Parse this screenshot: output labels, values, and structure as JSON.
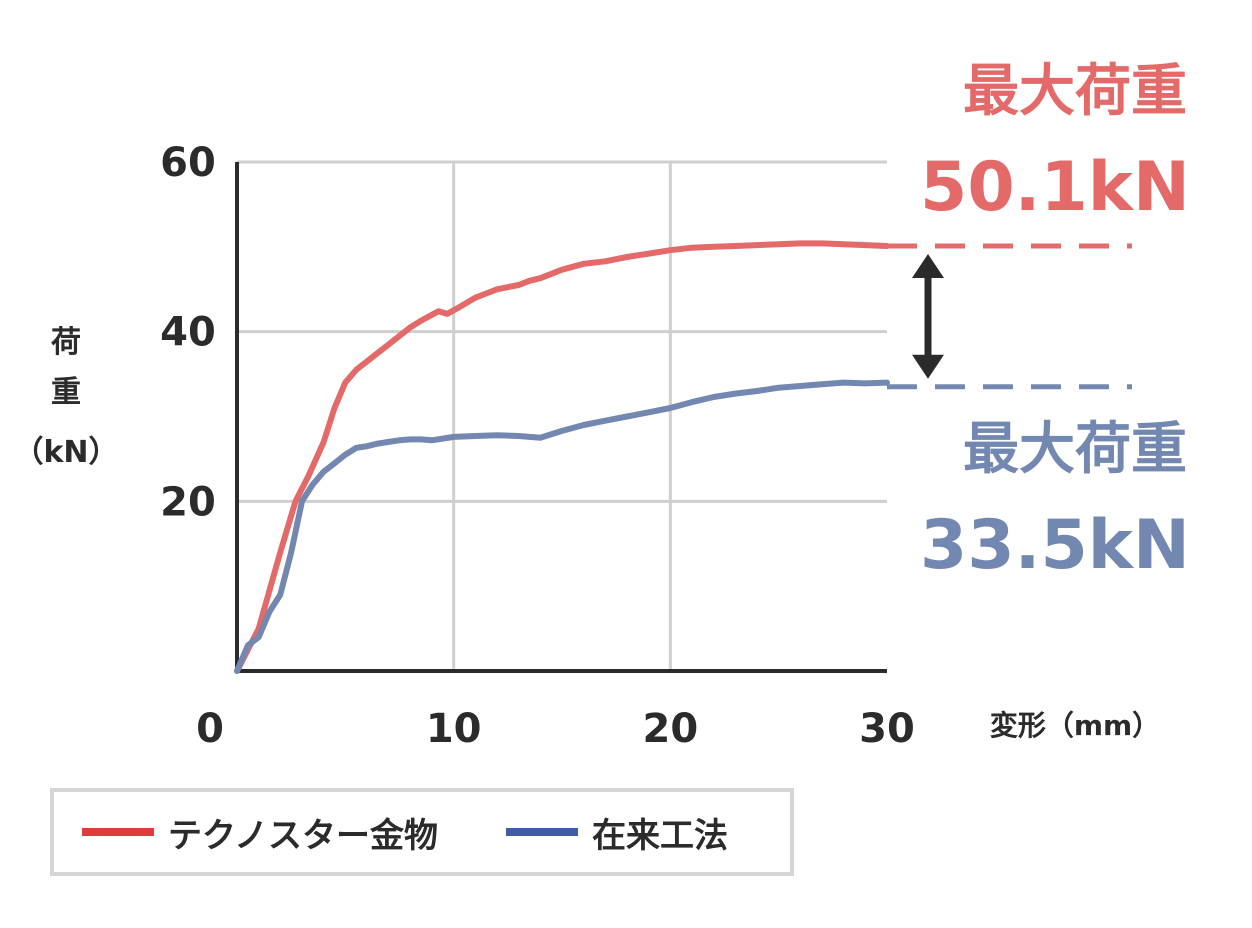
{
  "chart_data": {
    "type": "line",
    "xlabel": "変形（mm）",
    "ylabel": [
      "荷",
      "重",
      "（kN）"
    ],
    "xlim": [
      0,
      30
    ],
    "ylim": [
      0,
      60
    ],
    "x_ticks": [
      "0",
      "10",
      "20",
      "30"
    ],
    "y_ticks": [
      "20",
      "40",
      "60"
    ],
    "y_tick_values": [
      20,
      40,
      60
    ],
    "x_tick_values": [
      0,
      10,
      20,
      30
    ],
    "grid": true,
    "legend_position": "bottom-left",
    "colors": {
      "technostar": "#e46a6a",
      "conventional": "#7388b1",
      "axis": "#2b2b2b",
      "grid": "#cfcfcf",
      "arrow": "#2b2b2b"
    },
    "series": [
      {
        "name": "テクノスター金物",
        "color": "#e46a6a",
        "x": [
          0,
          1,
          2,
          2.7,
          3.3,
          4,
          4.5,
          5,
          5.5,
          6,
          6.5,
          7,
          7.5,
          8,
          8.5,
          9,
          9.3,
          9.7,
          10.2,
          11,
          11.5,
          12,
          13,
          13.5,
          14,
          15,
          16,
          17,
          18,
          19,
          20,
          21,
          22,
          23,
          24,
          25,
          26,
          27,
          28,
          29,
          30
        ],
        "values": [
          0,
          5,
          14,
          20,
          23,
          27,
          31,
          34,
          35.5,
          36.5,
          37.5,
          38.5,
          39.5,
          40.5,
          41.3,
          42,
          42.4,
          42.1,
          42.8,
          44,
          44.5,
          45,
          45.5,
          46,
          46.3,
          47.3,
          48,
          48.3,
          48.8,
          49.2,
          49.6,
          49.9,
          50,
          50.1,
          50.2,
          50.3,
          50.4,
          50.4,
          50.3,
          50.2,
          50.1
        ]
      },
      {
        "name": "在来工法",
        "color": "#7388b1",
        "x": [
          0,
          0.5,
          1,
          1.5,
          2,
          2.5,
          3,
          3.5,
          4,
          4.5,
          5,
          5.5,
          6,
          6.5,
          7,
          7.5,
          8,
          8.5,
          9,
          9.5,
          10,
          11,
          12,
          13,
          14,
          15,
          16,
          17,
          18,
          19,
          20,
          21,
          22,
          23,
          24,
          25,
          26,
          27,
          28,
          29,
          30
        ],
        "values": [
          0,
          3,
          4,
          7,
          9,
          14,
          20,
          22,
          23.5,
          24.5,
          25.5,
          26.3,
          26.5,
          26.8,
          27,
          27.2,
          27.3,
          27.3,
          27.2,
          27.4,
          27.6,
          27.7,
          27.8,
          27.7,
          27.5,
          28.3,
          29,
          29.5,
          30,
          30.5,
          31,
          31.7,
          32.3,
          32.7,
          33,
          33.4,
          33.6,
          33.8,
          34,
          33.9,
          34
        ]
      }
    ],
    "annotations": [
      {
        "title": "最大荷重",
        "value": "50.1kN",
        "y": 50.1,
        "color": "#e46a6a"
      },
      {
        "title": "最大荷重",
        "value": "33.5kN",
        "y": 33.5,
        "color": "#7388b1"
      }
    ]
  },
  "legend": {
    "items": [
      {
        "label": "テクノスター金物",
        "color": "#e03a3a"
      },
      {
        "label": "在来工法",
        "color": "#3f5da6"
      }
    ]
  }
}
